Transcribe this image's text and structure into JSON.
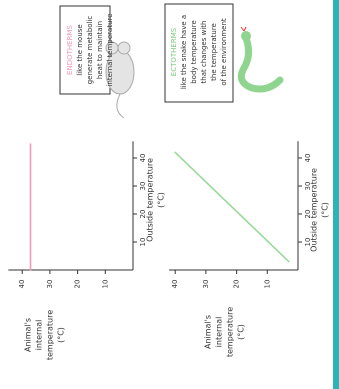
{
  "chart_data": [
    {
      "type": "line",
      "annotation_title": "ENDOTHERMS",
      "annotation": [
        "like the mouse",
        "generate metabolic",
        "heat to maintain",
        "internal temperature"
      ],
      "x_label": [
        "Outside temperature",
        "(°C)"
      ],
      "y_label": [
        "Animal's",
        "internal",
        "temperature",
        "(°C)"
      ],
      "xlim": [
        0,
        46
      ],
      "xticks": [
        10,
        20,
        30,
        40
      ],
      "ylim": [
        0,
        45
      ],
      "yticks": [
        10,
        20,
        30,
        40
      ],
      "series": [
        {
          "color": "#f29ab5",
          "x": [
            0,
            45
          ],
          "values": [
            37,
            37
          ]
        }
      ]
    },
    {
      "type": "line",
      "annotation_title": "ECTOTHERMS",
      "annotation": [
        "like the snake have a",
        "body temperature",
        "that changes with",
        "the temperature",
        "of the environment"
      ],
      "x_label": [
        "Outside temperature",
        "(°C)"
      ],
      "y_label": [
        "Animal's",
        "internal",
        "temperature",
        "(°C)"
      ],
      "xlim": [
        0,
        46
      ],
      "xticks": [
        10,
        20,
        30,
        40
      ],
      "ylim": [
        0,
        42
      ],
      "yticks": [
        10,
        20,
        30,
        40
      ],
      "series": [
        {
          "color": "#9bd89b",
          "x": [
            3,
            42
          ],
          "values": [
            3,
            40
          ]
        }
      ]
    }
  ]
}
